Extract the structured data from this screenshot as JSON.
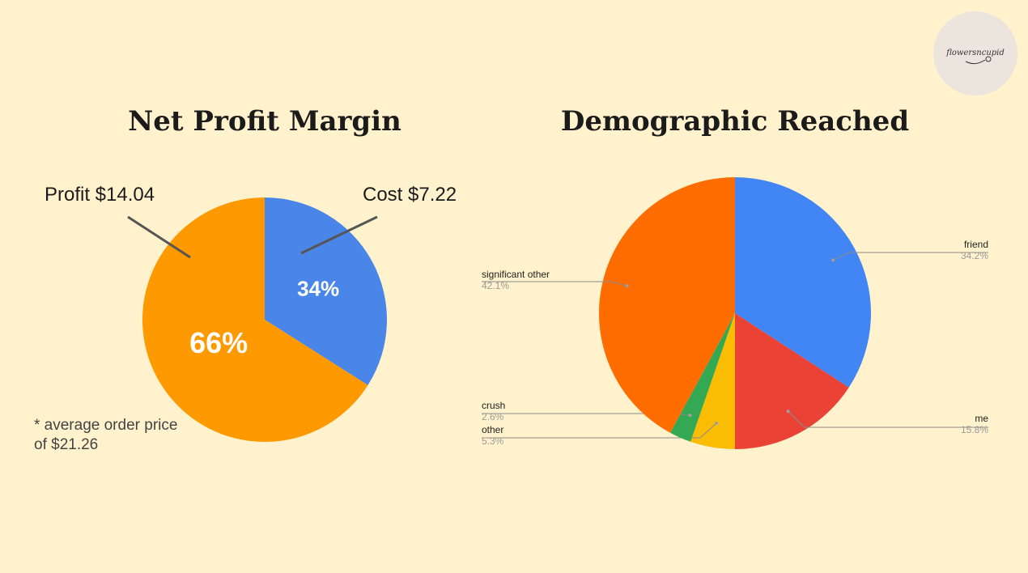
{
  "logo": {
    "text": "flowersncupid",
    "icon": "flower-sketch-icon"
  },
  "chart_data": [
    {
      "type": "pie",
      "title": "Net Profit Margin",
      "slices": [
        {
          "name": "Cost",
          "value": 34,
          "label": "Cost $7.22",
          "percent_label": "34%",
          "color": "#4a86e8"
        },
        {
          "name": "Profit",
          "value": 66,
          "label": "Profit $14.04",
          "percent_label": "66%",
          "color": "#ff9900"
        }
      ],
      "footnote": "* average order price of $21.26"
    },
    {
      "type": "pie",
      "title": "Demographic Reached",
      "slices": [
        {
          "name": "friend",
          "value": 34.2,
          "percent_label": "34.2%",
          "color": "#4285f4"
        },
        {
          "name": "me",
          "value": 15.8,
          "percent_label": "15.8%",
          "color": "#ea4335"
        },
        {
          "name": "other",
          "value": 5.3,
          "percent_label": "5.3%",
          "color": "#fbbc04"
        },
        {
          "name": "crush",
          "value": 2.6,
          "percent_label": "2.6%",
          "color": "#34a853"
        },
        {
          "name": "significant other",
          "value": 42.1,
          "percent_label": "42.1%",
          "color": "#ff6d01"
        }
      ]
    }
  ]
}
